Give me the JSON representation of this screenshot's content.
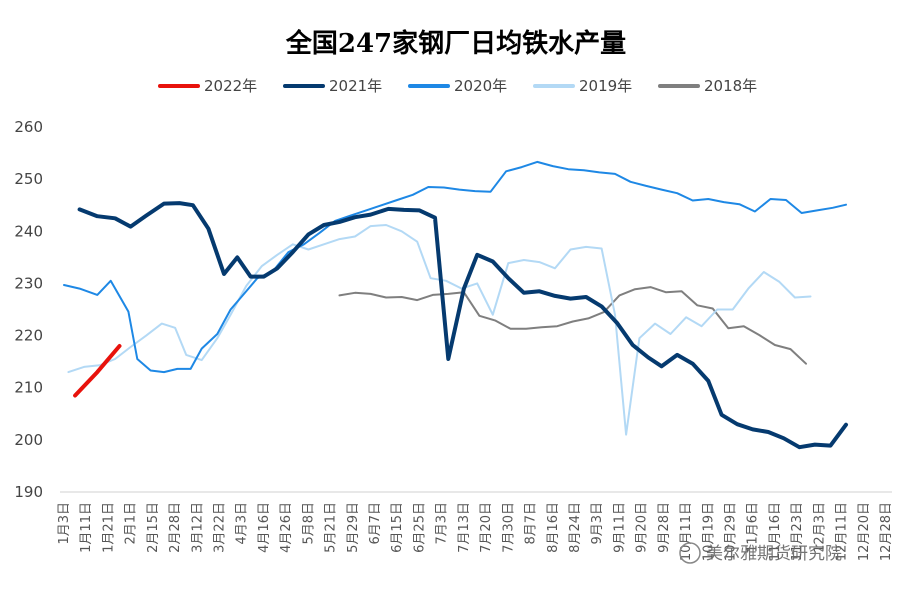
{
  "chart_data": {
    "type": "line",
    "title": "全国247家钢厂日均铁水产量",
    "ylim": [
      190,
      260
    ],
    "yticks": [
      190,
      200,
      210,
      220,
      230,
      240,
      250,
      260
    ],
    "grid": false,
    "legend_position": "top",
    "categories": [
      "1月3日",
      "1月11日",
      "1月21日",
      "2月1日",
      "2月15日",
      "2月28日",
      "3月12日",
      "3月22日",
      "4月3日",
      "4月16日",
      "4月26日",
      "5月8日",
      "5月21日",
      "5月29日",
      "6月7日",
      "6月15日",
      "6月25日",
      "7月3日",
      "7月13日",
      "7月20日",
      "7月30日",
      "8月7日",
      "8月16日",
      "8月24日",
      "9月3日",
      "9月11日",
      "9月20日",
      "9月28日",
      "10月11日",
      "10月19日",
      "10月29日",
      "11月6日",
      "11月16日",
      "11月23日",
      "12月3日",
      "12月11日",
      "12月20日",
      "12月28日"
    ],
    "series": [
      {
        "name": "2022年",
        "color": "#e8120c",
        "width": 4,
        "points": [
          [
            0.5,
            208.5
          ],
          [
            1.5,
            213.0
          ],
          [
            2.5,
            218.0
          ]
        ]
      },
      {
        "name": "2021年",
        "color": "#053a6f",
        "width": 4,
        "points": [
          [
            0.7,
            244.2
          ],
          [
            1.5,
            242.9
          ],
          [
            2.3,
            242.5
          ],
          [
            3.0,
            240.9
          ],
          [
            3.7,
            243.0
          ],
          [
            4.5,
            245.3
          ],
          [
            5.2,
            245.4
          ],
          [
            5.8,
            245.0
          ],
          [
            6.5,
            240.5
          ],
          [
            7.2,
            231.8
          ],
          [
            7.8,
            235.0
          ],
          [
            8.4,
            231.3
          ],
          [
            9.0,
            231.3
          ],
          [
            9.6,
            232.9
          ],
          [
            10.3,
            236.0
          ],
          [
            11.0,
            239.4
          ],
          [
            11.7,
            241.2
          ],
          [
            12.4,
            241.8
          ],
          [
            13.1,
            242.7
          ],
          [
            13.8,
            243.2
          ],
          [
            14.6,
            244.3
          ],
          [
            15.3,
            244.1
          ],
          [
            16.0,
            244.0
          ],
          [
            16.7,
            242.6
          ],
          [
            17.3,
            215.5
          ],
          [
            18.0,
            229.0
          ],
          [
            18.6,
            235.5
          ],
          [
            19.3,
            234.2
          ],
          [
            20.0,
            231.0
          ],
          [
            20.7,
            228.2
          ],
          [
            21.4,
            228.5
          ],
          [
            22.1,
            227.6
          ],
          [
            22.8,
            227.1
          ],
          [
            23.5,
            227.4
          ],
          [
            24.2,
            225.6
          ],
          [
            24.9,
            222.4
          ],
          [
            25.6,
            218.2
          ],
          [
            26.3,
            215.8
          ],
          [
            26.9,
            214.1
          ],
          [
            27.6,
            216.3
          ],
          [
            28.3,
            214.6
          ],
          [
            29.0,
            211.3
          ],
          [
            29.6,
            204.8
          ],
          [
            30.3,
            203.0
          ],
          [
            31.0,
            202.0
          ],
          [
            31.7,
            201.5
          ],
          [
            32.4,
            200.3
          ],
          [
            33.1,
            198.6
          ],
          [
            33.8,
            199.1
          ],
          [
            34.5,
            198.9
          ],
          [
            35.2,
            202.9
          ]
        ]
      },
      {
        "name": "2020年",
        "color": "#1e88e5",
        "width": 2,
        "points": [
          [
            0.0,
            229.7
          ],
          [
            0.7,
            229.0
          ],
          [
            1.5,
            227.8
          ],
          [
            2.1,
            230.5
          ],
          [
            2.9,
            224.6
          ],
          [
            3.3,
            215.5
          ],
          [
            3.9,
            213.3
          ],
          [
            4.5,
            213.0
          ],
          [
            5.1,
            213.6
          ],
          [
            5.7,
            213.6
          ],
          [
            6.2,
            217.5
          ],
          [
            6.9,
            220.3
          ],
          [
            7.5,
            225.0
          ],
          [
            8.1,
            228.0
          ],
          [
            8.7,
            231.0
          ],
          [
            9.4,
            232.3
          ],
          [
            10.1,
            236.0
          ],
          [
            10.8,
            237.5
          ],
          [
            11.5,
            239.7
          ],
          [
            12.2,
            242.0
          ],
          [
            12.9,
            243.0
          ],
          [
            13.6,
            244.0
          ],
          [
            14.3,
            245.0
          ],
          [
            15.0,
            246.0
          ],
          [
            15.7,
            247.0
          ],
          [
            16.4,
            248.5
          ],
          [
            17.1,
            248.4
          ],
          [
            17.8,
            248.0
          ],
          [
            18.5,
            247.7
          ],
          [
            19.2,
            247.6
          ],
          [
            19.9,
            251.5
          ],
          [
            20.6,
            252.3
          ],
          [
            21.3,
            253.3
          ],
          [
            22.0,
            252.5
          ],
          [
            22.7,
            251.9
          ],
          [
            23.4,
            251.7
          ],
          [
            24.1,
            251.3
          ],
          [
            24.8,
            251.0
          ],
          [
            25.5,
            249.5
          ],
          [
            26.2,
            248.7
          ],
          [
            26.9,
            248.0
          ],
          [
            27.6,
            247.3
          ],
          [
            28.3,
            245.9
          ],
          [
            29.0,
            246.2
          ],
          [
            29.7,
            245.6
          ],
          [
            30.4,
            245.2
          ],
          [
            31.1,
            243.8
          ],
          [
            31.8,
            246.2
          ],
          [
            32.5,
            246.0
          ],
          [
            33.2,
            243.5
          ],
          [
            33.9,
            244.0
          ],
          [
            34.6,
            244.5
          ],
          [
            35.2,
            245.1
          ]
        ]
      },
      {
        "name": "2019年",
        "color": "#b3d9f5",
        "width": 2,
        "points": [
          [
            0.2,
            213.0
          ],
          [
            0.9,
            214.0
          ],
          [
            1.6,
            214.3
          ],
          [
            2.3,
            215.5
          ],
          [
            3.0,
            217.8
          ],
          [
            3.7,
            220.0
          ],
          [
            4.4,
            222.3
          ],
          [
            5.0,
            221.5
          ],
          [
            5.5,
            216.3
          ],
          [
            6.2,
            215.3
          ],
          [
            6.9,
            219.5
          ],
          [
            7.5,
            224.0
          ],
          [
            8.2,
            229.5
          ],
          [
            8.9,
            233.3
          ],
          [
            9.6,
            235.5
          ],
          [
            10.3,
            237.5
          ],
          [
            11.0,
            236.5
          ],
          [
            11.7,
            237.5
          ],
          [
            12.4,
            238.5
          ],
          [
            13.1,
            239.0
          ],
          [
            13.8,
            241.0
          ],
          [
            14.5,
            241.2
          ],
          [
            15.2,
            240.0
          ],
          [
            15.9,
            238.0
          ],
          [
            16.5,
            231.0
          ],
          [
            17.2,
            230.5
          ],
          [
            17.9,
            229.0
          ],
          [
            18.6,
            230.0
          ],
          [
            19.3,
            224.0
          ],
          [
            20.0,
            233.9
          ],
          [
            20.7,
            234.5
          ],
          [
            21.4,
            234.1
          ],
          [
            22.1,
            232.9
          ],
          [
            22.8,
            236.5
          ],
          [
            23.5,
            237.0
          ],
          [
            24.2,
            236.7
          ],
          [
            24.8,
            224.0
          ],
          [
            25.3,
            201.0
          ],
          [
            25.9,
            219.5
          ],
          [
            26.6,
            222.3
          ],
          [
            27.3,
            220.3
          ],
          [
            28.0,
            223.5
          ],
          [
            28.7,
            221.8
          ],
          [
            29.4,
            225.0
          ],
          [
            30.1,
            225.0
          ],
          [
            30.8,
            229.0
          ],
          [
            31.5,
            232.2
          ],
          [
            32.2,
            230.3
          ],
          [
            32.9,
            227.3
          ],
          [
            33.6,
            227.5
          ]
        ]
      },
      {
        "name": "2018年",
        "color": "#7f7f7f",
        "width": 2,
        "points": [
          [
            12.4,
            227.7
          ],
          [
            13.1,
            228.2
          ],
          [
            13.8,
            228.0
          ],
          [
            14.5,
            227.3
          ],
          [
            15.2,
            227.4
          ],
          [
            15.9,
            226.8
          ],
          [
            16.6,
            227.8
          ],
          [
            17.3,
            228.0
          ],
          [
            18.0,
            228.3
          ],
          [
            18.7,
            223.8
          ],
          [
            19.4,
            222.9
          ],
          [
            20.1,
            221.3
          ],
          [
            20.8,
            221.3
          ],
          [
            21.5,
            221.6
          ],
          [
            22.2,
            221.8
          ],
          [
            22.9,
            222.7
          ],
          [
            23.6,
            223.3
          ],
          [
            24.3,
            224.5
          ],
          [
            25.0,
            227.7
          ],
          [
            25.7,
            228.9
          ],
          [
            26.4,
            229.3
          ],
          [
            27.1,
            228.3
          ],
          [
            27.8,
            228.5
          ],
          [
            28.5,
            225.8
          ],
          [
            29.2,
            225.2
          ],
          [
            29.9,
            221.4
          ],
          [
            30.6,
            221.8
          ],
          [
            31.3,
            220.1
          ],
          [
            32.0,
            218.2
          ],
          [
            32.7,
            217.4
          ],
          [
            33.4,
            214.6
          ]
        ]
      }
    ]
  },
  "watermark": "美尔雅期货研究院"
}
